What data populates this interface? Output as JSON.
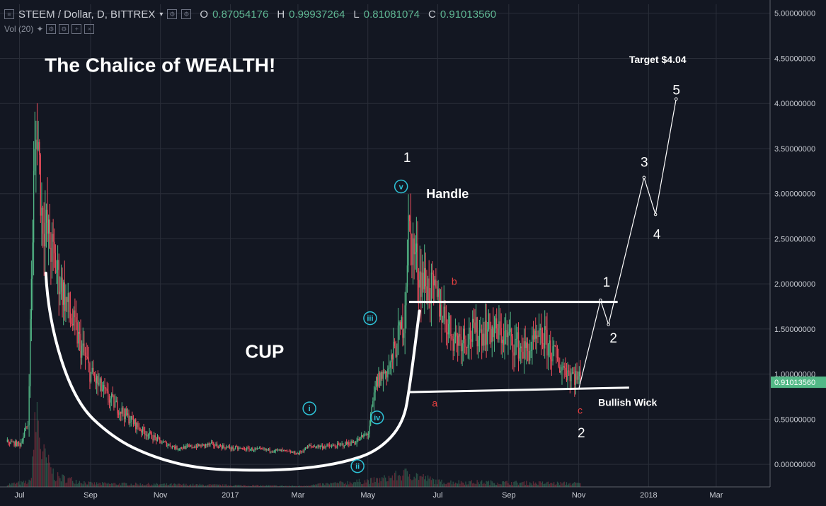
{
  "header": {
    "symbol": "STEEM / Dollar, D, BITTREX",
    "o_label": "O",
    "o_value": "0.87054176",
    "h_label": "H",
    "h_value": "0.99937264",
    "l_label": "L",
    "l_value": "0.81081074",
    "c_label": "C",
    "c_value": "0.91013560",
    "vol_label": "Vol (20)"
  },
  "colors": {
    "bg": "#131722",
    "up": "#53b987",
    "down": "#eb4d5c",
    "grid": "#2a2e39",
    "annotation": "#ffffff",
    "wave_label": "#2ec4d8",
    "abc": "#e84040"
  },
  "chart_data": {
    "type": "candlestick",
    "title": "The Chalice of WEALTH!",
    "ylim": [
      -0.25,
      5.1
    ],
    "y_ticks": [
      "5.00000000",
      "4.50000000",
      "4.00000000",
      "3.50000000",
      "3.00000000",
      "2.50000000",
      "2.00000000",
      "1.50000000",
      "1.00000000",
      "0.50000000",
      "0.00000000"
    ],
    "x_ticks": [
      "Jul",
      "Sep",
      "Nov",
      "2017",
      "Mar",
      "May",
      "Jul",
      "Sep",
      "Nov",
      "2018",
      "Mar"
    ],
    "last_price": "0.91013560",
    "price_path": [
      [
        "2016-06-20",
        0.25
      ],
      [
        "2016-07-01",
        0.22
      ],
      [
        "2016-07-08",
        0.45
      ],
      [
        "2016-07-13",
        3.1
      ],
      [
        "2016-07-16",
        3.8
      ],
      [
        "2016-07-20",
        2.8
      ],
      [
        "2016-08-01",
        2.2
      ],
      [
        "2016-08-15",
        1.6
      ],
      [
        "2016-09-01",
        1.0
      ],
      [
        "2016-09-15",
        0.75
      ],
      [
        "2016-10-01",
        0.55
      ],
      [
        "2016-10-15",
        0.38
      ],
      [
        "2016-11-01",
        0.25
      ],
      [
        "2016-11-15",
        0.18
      ],
      [
        "2016-12-01",
        0.2
      ],
      [
        "2016-12-15",
        0.22
      ],
      [
        "2017-01-01",
        0.18
      ],
      [
        "2017-01-15",
        0.17
      ],
      [
        "2017-02-01",
        0.16
      ],
      [
        "2017-02-15",
        0.15
      ],
      [
        "2017-03-01",
        0.12
      ],
      [
        "2017-03-10",
        0.2
      ],
      [
        "2017-03-20",
        0.2
      ],
      [
        "2017-04-01",
        0.2
      ],
      [
        "2017-04-20",
        0.25
      ],
      [
        "2017-05-01",
        0.35
      ],
      [
        "2017-05-08",
        0.9
      ],
      [
        "2017-05-20",
        1.1
      ],
      [
        "2017-06-01",
        1.6
      ],
      [
        "2017-06-05",
        2.6
      ],
      [
        "2017-06-15",
        2.1
      ],
      [
        "2017-07-01",
        1.8
      ],
      [
        "2017-07-15",
        1.4
      ],
      [
        "2017-08-01",
        1.45
      ],
      [
        "2017-08-15",
        1.5
      ],
      [
        "2017-09-01",
        1.4
      ],
      [
        "2017-09-15",
        1.25
      ],
      [
        "2017-10-01",
        1.4
      ],
      [
        "2017-10-15",
        1.1
      ],
      [
        "2017-11-01",
        0.95
      ],
      [
        "2017-11-02",
        0.91
      ]
    ],
    "volume_path": [
      [
        "2016-06-20",
        0.15
      ],
      [
        "2016-07-10",
        0.3
      ],
      [
        "2016-07-16",
        4.5
      ],
      [
        "2016-07-20",
        2.0
      ],
      [
        "2016-08-01",
        0.6
      ],
      [
        "2016-09-01",
        0.2
      ],
      [
        "2017-03-01",
        0.05
      ],
      [
        "2017-05-10",
        0.4
      ],
      [
        "2017-06-05",
        0.8
      ],
      [
        "2017-07-01",
        0.3
      ],
      [
        "2017-11-01",
        0.2
      ]
    ],
    "projection": [
      [
        "2017-11-01",
        0.83
      ],
      [
        "2017-11-20",
        1.82
      ],
      [
        "2017-11-27",
        1.55
      ],
      [
        "2017-12-28",
        3.18
      ],
      [
        "2018-01-07",
        2.77
      ],
      [
        "2018-01-25",
        4.05
      ]
    ],
    "cup_line": [
      [
        "2016-07-24",
        2.12
      ],
      [
        "2016-07-26",
        1.62
      ],
      [
        "2016-08-18",
        0.7
      ],
      [
        "2016-09-20",
        0.3
      ],
      [
        "2016-10-25",
        0.08
      ],
      [
        "2016-12-05",
        -0.05
      ],
      [
        "2017-01-25",
        -0.07
      ],
      [
        "2017-03-05",
        -0.05
      ],
      [
        "2017-04-10",
        0.02
      ],
      [
        "2017-05-10",
        0.15
      ],
      [
        "2017-06-01",
        0.45
      ],
      [
        "2017-06-07",
        0.9
      ],
      [
        "2017-06-15",
        1.7
      ]
    ],
    "handle_top": {
      "from": [
        "2017-06-06",
        1.8
      ],
      "to": [
        "2017-12-05",
        1.8
      ]
    },
    "handle_bottom": {
      "from": [
        "2017-06-05",
        0.8
      ],
      "to": [
        "2017-12-15",
        0.85
      ]
    },
    "annotations": [
      {
        "text": "The Chalice of WEALTH!",
        "at": [
          "2016-07-23",
          4.35
        ],
        "style": "title"
      },
      {
        "text": "CUP",
        "at": [
          "2017-01-14",
          1.18
        ],
        "style": "big"
      },
      {
        "text": "Handle",
        "at": [
          "2017-06-21",
          2.95
        ],
        "style": "mid"
      },
      {
        "text": "Bullish Wick",
        "at": [
          "2017-11-18",
          0.65
        ],
        "style": "small"
      },
      {
        "text": "Target $4.04",
        "at": [
          "2017-12-15",
          4.45
        ],
        "style": "small"
      },
      {
        "text": "1",
        "at": [
          "2017-06-01",
          3.35
        ],
        "style": "wave"
      },
      {
        "text": "2",
        "at": [
          "2017-10-31",
          0.3
        ],
        "style": "wave"
      },
      {
        "text": "1",
        "at": [
          "2017-11-22",
          1.97
        ],
        "style": "wave"
      },
      {
        "text": "2",
        "at": [
          "2017-11-28",
          1.35
        ],
        "style": "wave"
      },
      {
        "text": "3",
        "at": [
          "2017-12-25",
          3.3
        ],
        "style": "wave"
      },
      {
        "text": "4",
        "at": [
          "2018-01-05",
          2.5
        ],
        "style": "wave"
      },
      {
        "text": "5",
        "at": [
          "2018-01-22",
          4.1
        ],
        "style": "wave"
      },
      {
        "text": "5",
        "at": [
          "2018-01-22",
          5.18
        ],
        "style": "wave"
      },
      {
        "text": "a",
        "at": [
          "2017-06-26",
          0.64
        ],
        "style": "abc"
      },
      {
        "text": "b",
        "at": [
          "2017-07-13",
          1.99
        ],
        "style": "abc"
      },
      {
        "text": "c",
        "at": [
          "2017-10-31",
          0.56
        ],
        "style": "abc"
      }
    ],
    "circled_waves": [
      {
        "text": "i",
        "at": [
          "2017-03-11",
          0.62
        ]
      },
      {
        "text": "ii",
        "at": [
          "2017-04-22",
          -0.02
        ]
      },
      {
        "text": "iii",
        "at": [
          "2017-05-03",
          1.62
        ]
      },
      {
        "text": "iv",
        "at": [
          "2017-05-09",
          0.52
        ]
      },
      {
        "text": "v",
        "at": [
          "2017-05-30",
          3.08
        ]
      }
    ]
  }
}
